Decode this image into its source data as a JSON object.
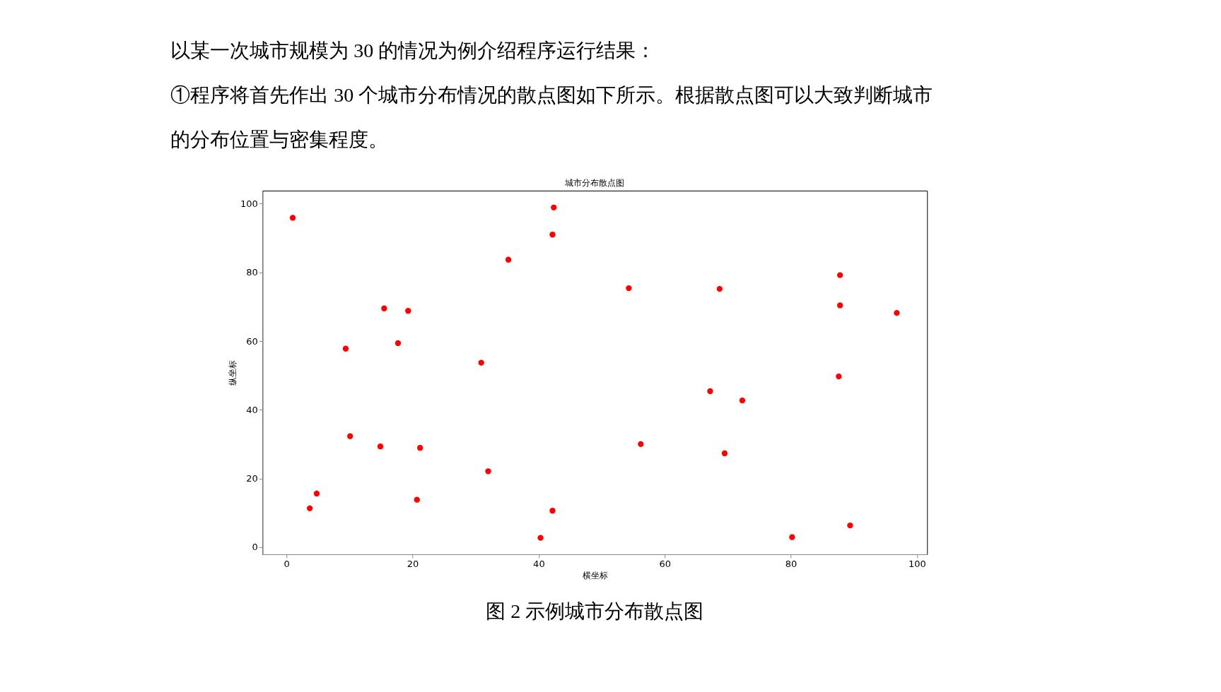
{
  "chart_data": {
    "type": "scatter",
    "title": "城市分布散点图",
    "xlabel": "横坐标",
    "ylabel": "纵坐标",
    "annotations": [
      "以某一次城市规模为 30 的情况为例介绍程序运行结果：",
      "①程序将首先作出 30 个城市分布情况的散点图如下所示。根据散点图可以大致判断城市",
      "的分布位置与密集程度。",
      "图 2  示例城市分布散点图"
    ],
    "series": [
      {
        "color": "#ff0000",
        "x": [
          1.0,
          42.4,
          42.2,
          35.2,
          54.3,
          68.7,
          87.8,
          87.8,
          96.8,
          15.5,
          19.3,
          17.7,
          9.4,
          30.9,
          87.6,
          67.2,
          72.3,
          10.1,
          14.9,
          21.2,
          56.2,
          69.5,
          32.0,
          4.8,
          3.7,
          20.7,
          42.2,
          40.3,
          80.2,
          89.4
        ],
        "values": [
          95.9,
          98.9,
          91.0,
          83.7,
          75.4,
          75.2,
          79.2,
          70.4,
          68.2,
          69.5,
          68.8,
          59.4,
          57.8,
          53.7,
          49.7,
          45.4,
          42.7,
          32.3,
          29.3,
          28.9,
          30.0,
          27.3,
          22.1,
          15.6,
          11.3,
          13.8,
          10.6,
          2.7,
          2.9,
          6.3
        ]
      }
    ],
    "xlim": [
      -3.8,
      101.6
    ],
    "ylim": [
      -2.1,
      103.8
    ],
    "xticks": [
      0,
      20,
      40,
      60,
      80,
      100
    ],
    "yticks": [
      0,
      20,
      40,
      60,
      80,
      100
    ],
    "grid": false,
    "marker": "circle"
  }
}
